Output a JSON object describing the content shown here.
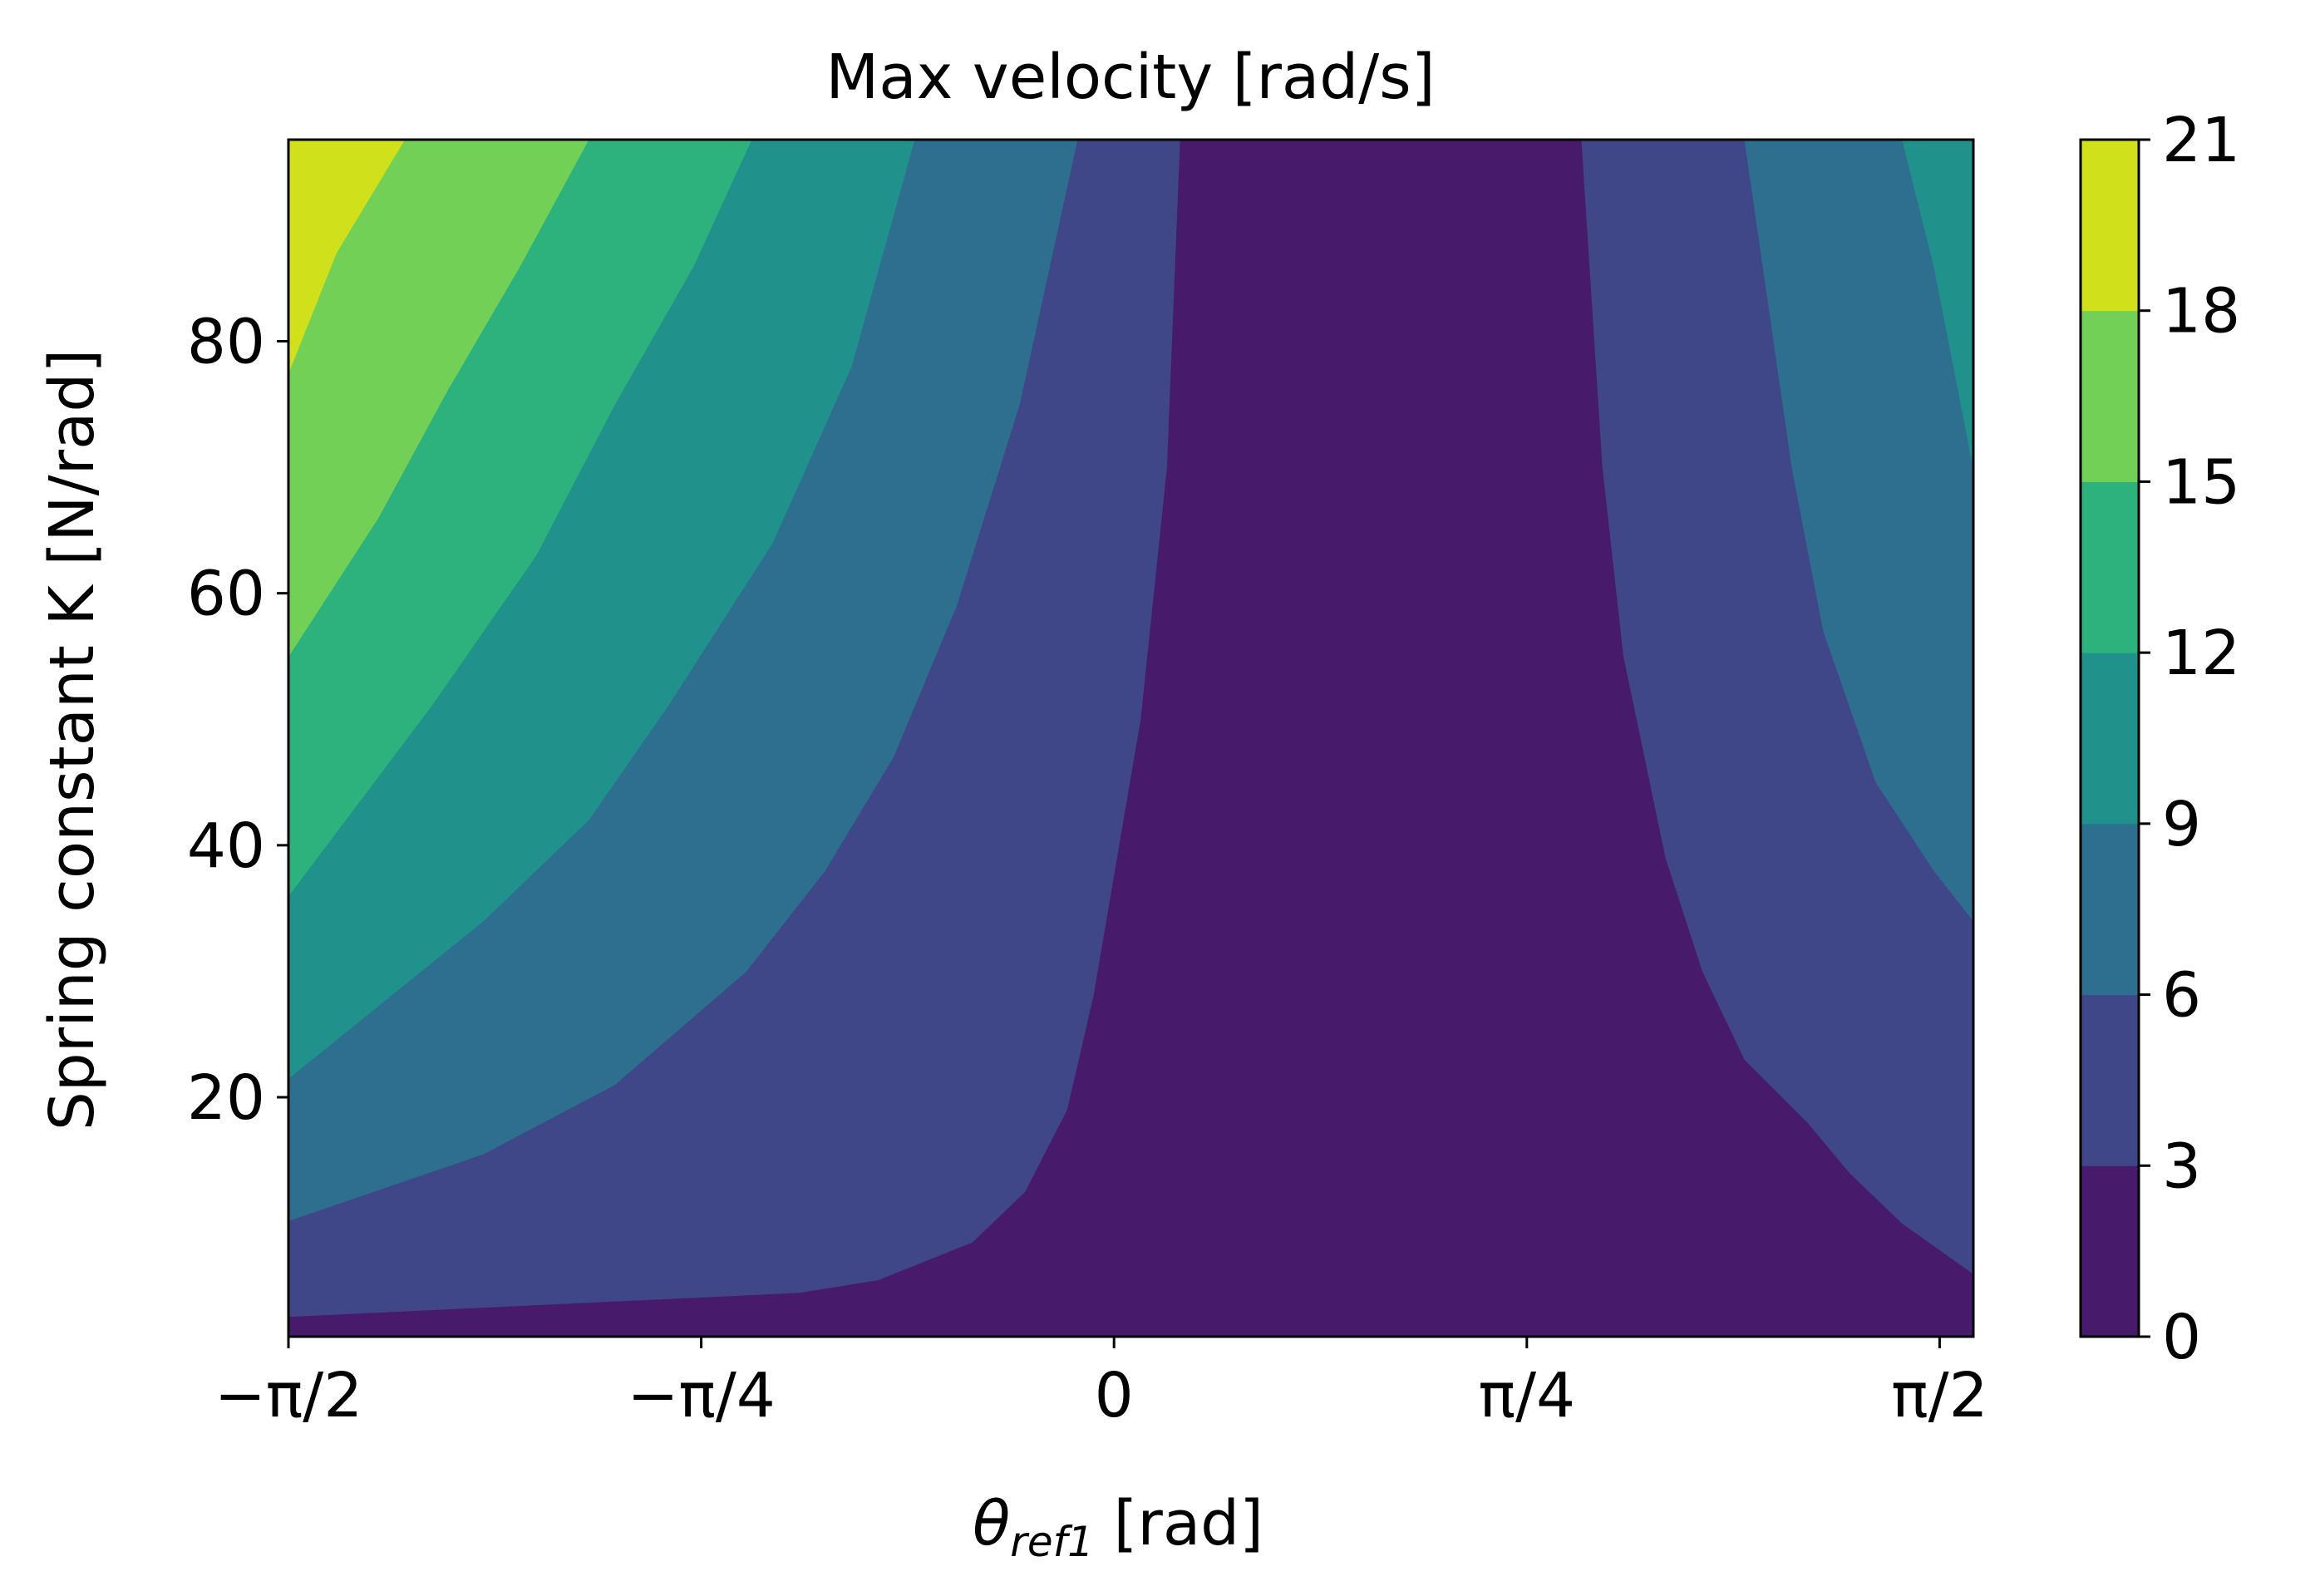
{
  "chart_data": {
    "type": "contour",
    "title": "Max velocity [rad/s]",
    "xlabel": {
      "base": "θ",
      "sub": "ref1",
      "suffix": " [rad]"
    },
    "ylabel": "Spring constant K [N/rad]",
    "xlim": [
      -1.5708,
      1.635
    ],
    "ylim": [
      1,
      96
    ],
    "x_ticks": [
      {
        "value": -1.5708,
        "label": "−π/2"
      },
      {
        "value": -0.7854,
        "label": "−π/4"
      },
      {
        "value": 0,
        "label": "0"
      },
      {
        "value": 0.7854,
        "label": "π/4"
      },
      {
        "value": 1.5708,
        "label": "π/2"
      }
    ],
    "y_ticks": [
      {
        "value": 20,
        "label": "20"
      },
      {
        "value": 40,
        "label": "40"
      },
      {
        "value": 60,
        "label": "60"
      },
      {
        "value": 80,
        "label": "80"
      }
    ],
    "levels": [
      0,
      3,
      6,
      9,
      12,
      15,
      18,
      21
    ],
    "level_labels": [
      "0",
      "3",
      "6",
      "9",
      "12",
      "15",
      "18",
      "21"
    ],
    "colormap": "viridis",
    "band_colors": [
      "#481a6c",
      "#3f4788",
      "#2e6e8e",
      "#21918c",
      "#2db27d",
      "#73d056",
      "#d0e11c"
    ],
    "contour_lines": [
      {
        "level": 3,
        "points": [
          [
            -1.5708,
            2.6
          ],
          [
            -0.6,
            4.5
          ],
          [
            -0.45,
            5.5
          ],
          [
            -0.27,
            8.5
          ],
          [
            -0.17,
            12.5
          ],
          [
            -0.09,
            19
          ],
          [
            -0.04,
            28
          ],
          [
            0.05,
            50
          ],
          [
            0.1,
            70
          ],
          [
            0.125,
            96
          ]
        ]
      },
      {
        "level": 3,
        "points": [
          [
            0.89,
            96
          ],
          [
            0.93,
            70
          ],
          [
            0.97,
            55
          ],
          [
            1.05,
            39
          ],
          [
            1.12,
            30
          ],
          [
            1.2,
            23
          ],
          [
            1.32,
            18
          ],
          [
            1.4,
            14
          ],
          [
            1.5,
            10
          ],
          [
            1.635,
            6
          ]
        ]
      },
      {
        "level": 6,
        "points": [
          [
            -1.5708,
            10.2
          ],
          [
            -1.2,
            15.5
          ],
          [
            -0.95,
            21
          ],
          [
            -0.7,
            30
          ],
          [
            -0.55,
            38
          ],
          [
            -0.42,
            47
          ],
          [
            -0.3,
            59
          ],
          [
            -0.18,
            75
          ],
          [
            -0.07,
            96
          ]
        ]
      },
      {
        "level": 6,
        "points": [
          [
            1.2,
            96
          ],
          [
            1.29,
            70
          ],
          [
            1.35,
            57
          ],
          [
            1.45,
            45
          ],
          [
            1.56,
            38
          ],
          [
            1.635,
            34
          ]
        ]
      },
      {
        "level": 9,
        "points": [
          [
            -1.5708,
            21.5
          ],
          [
            -1.2,
            34
          ],
          [
            -1.0,
            42
          ],
          [
            -0.85,
            51
          ],
          [
            -0.65,
            64
          ],
          [
            -0.5,
            78
          ],
          [
            -0.38,
            96
          ]
        ]
      },
      {
        "level": 9,
        "points": [
          [
            1.5,
            96
          ],
          [
            1.56,
            86
          ],
          [
            1.635,
            70
          ]
        ]
      },
      {
        "level": 12,
        "points": [
          [
            -1.5708,
            36
          ],
          [
            -1.3,
            51
          ],
          [
            -1.1,
            63
          ],
          [
            -0.95,
            75
          ],
          [
            -0.8,
            86
          ],
          [
            -0.69,
            96
          ]
        ]
      },
      {
        "level": 15,
        "points": [
          [
            -1.5708,
            55
          ],
          [
            -1.4,
            66
          ],
          [
            -1.27,
            76
          ],
          [
            -1.13,
            86
          ],
          [
            -1.0,
            96
          ]
        ]
      },
      {
        "level": 18,
        "points": [
          [
            -1.5708,
            77.5
          ],
          [
            -1.48,
            87
          ],
          [
            -1.35,
            96
          ]
        ]
      }
    ]
  }
}
